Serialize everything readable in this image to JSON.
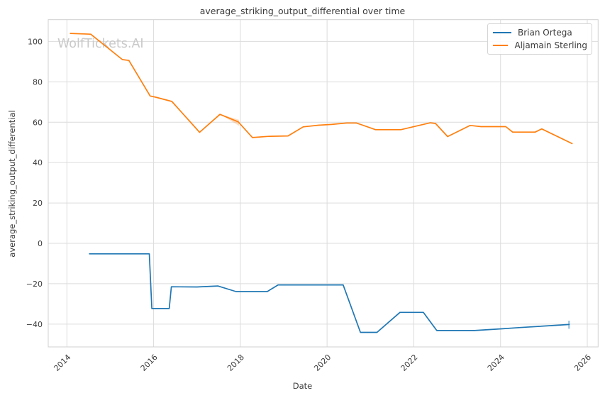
{
  "chart_data": {
    "type": "line",
    "title": "average_striking_output_differential over time",
    "xlabel": "Date",
    "ylabel": "average_striking_output_differential",
    "watermark": "WolfTickets.AI",
    "grid": true,
    "legend_position": "upper right",
    "xlim": [
      2013.57,
      2026.25
    ],
    "ylim": [
      -51.3,
      110.8
    ],
    "x_ticks": [
      2014,
      2016,
      2018,
      2020,
      2022,
      2024,
      2026
    ],
    "x_tick_labels": [
      "2014",
      "2016",
      "2018",
      "2020",
      "2022",
      "2024",
      "2026"
    ],
    "y_ticks": [
      100,
      80,
      60,
      40,
      20,
      0,
      -20,
      -40
    ],
    "y_tick_labels": [
      "100",
      "80",
      "60",
      "40",
      "20",
      "0",
      "−20",
      "−40"
    ],
    "colors": {
      "blue": "#1f77b4",
      "orange": "#ff7f0e",
      "grid": "#dcdcdc",
      "spine": "#d0d0d0",
      "text": "#3b3b3b",
      "watermark": "#c9c9c9"
    },
    "series": [
      {
        "name": "Brian Ortega",
        "color": "#1f77b4",
        "points": [
          [
            2014.52,
            -5.2
          ],
          [
            2015.9,
            -5.2
          ],
          [
            2015.96,
            -32.3
          ],
          [
            2016.36,
            -32.3
          ],
          [
            2016.41,
            -21.5
          ],
          [
            2017.0,
            -21.6
          ],
          [
            2017.48,
            -21.1
          ],
          [
            2017.9,
            -23.9
          ],
          [
            2018.62,
            -23.9
          ],
          [
            2018.87,
            -20.6
          ],
          [
            2020.37,
            -20.6
          ],
          [
            2020.77,
            -44.1
          ],
          [
            2021.15,
            -44.1
          ],
          [
            2021.68,
            -34.2
          ],
          [
            2022.22,
            -34.2
          ],
          [
            2022.53,
            -43.2
          ],
          [
            2023.4,
            -43.2
          ],
          [
            2024.05,
            -42.3
          ],
          [
            2024.45,
            -41.7
          ],
          [
            2025.58,
            -40.2
          ]
        ]
      },
      {
        "name": "Aljamain Sterling",
        "color": "#ff7f0e",
        "points": [
          [
            2014.08,
            104.0
          ],
          [
            2014.55,
            103.6
          ],
          [
            2015.28,
            91.0
          ],
          [
            2015.43,
            90.6
          ],
          [
            2015.92,
            73.0
          ],
          [
            2016.05,
            72.4
          ],
          [
            2016.42,
            70.3
          ],
          [
            2017.06,
            55.0
          ],
          [
            2017.53,
            63.9
          ],
          [
            2017.95,
            60.2
          ],
          [
            2018.28,
            52.4
          ],
          [
            2018.65,
            53.0
          ],
          [
            2019.1,
            53.2
          ],
          [
            2019.45,
            57.7
          ],
          [
            2019.8,
            58.5
          ],
          [
            2020.1,
            58.9
          ],
          [
            2020.45,
            59.6
          ],
          [
            2020.68,
            59.6
          ],
          [
            2021.12,
            56.3
          ],
          [
            2021.7,
            56.3
          ],
          [
            2022.1,
            58.3
          ],
          [
            2022.38,
            59.7
          ],
          [
            2022.5,
            59.4
          ],
          [
            2022.78,
            52.9
          ],
          [
            2023.3,
            58.4
          ],
          [
            2023.55,
            57.8
          ],
          [
            2024.12,
            57.8
          ],
          [
            2024.28,
            55.1
          ],
          [
            2024.8,
            55.1
          ],
          [
            2024.95,
            56.7
          ],
          [
            2025.65,
            49.4
          ]
        ]
      }
    ],
    "annotations": [
      {
        "type": "wedge",
        "series": "Aljamain Sterling",
        "color": "#ff7f0e",
        "opacity": 0.25,
        "points": [
          [
            2017.53,
            64.0
          ],
          [
            2017.97,
            61.2
          ],
          [
            2017.97,
            58.2
          ]
        ]
      },
      {
        "type": "tick",
        "series": "Brian Ortega",
        "color": "#1f77b4",
        "opacity": 0.4,
        "x": 2025.58,
        "y1": -38.3,
        "y2": -42.3
      }
    ]
  }
}
